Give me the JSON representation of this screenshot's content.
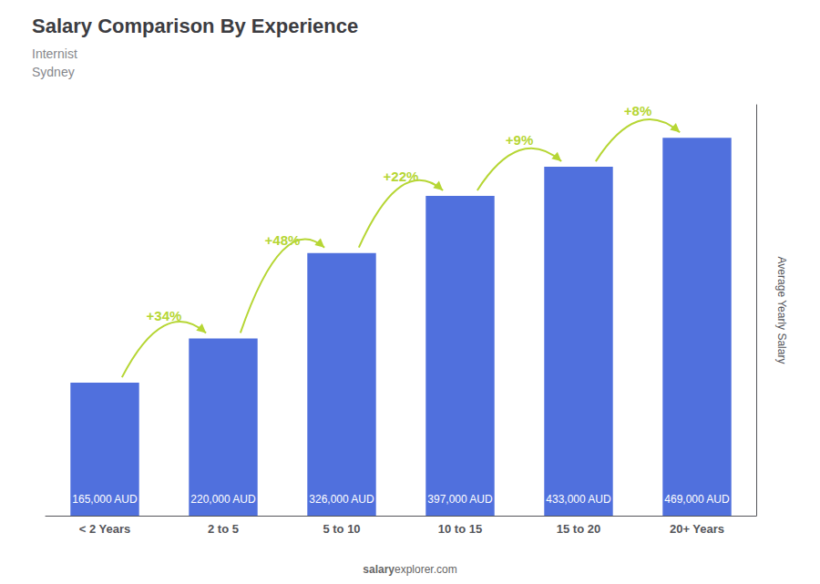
{
  "chart_data": {
    "type": "bar",
    "title": "Salary Comparison By Experience",
    "subtitle": [
      "Internist",
      "Sydney"
    ],
    "categories": [
      "< 2 Years",
      "2 to 5",
      "5 to 10",
      "10 to 15",
      "15 to 20",
      "20+ Years"
    ],
    "values": [
      165000,
      220000,
      326000,
      397000,
      433000,
      469000
    ],
    "value_labels": [
      "165,000 AUD",
      "220,000 AUD",
      "326,000 AUD",
      "397,000 AUD",
      "433,000 AUD",
      "469,000 AUD"
    ],
    "data_labels": true,
    "ylabel": "Average Yearly Salary",
    "annotations": [
      "+34%",
      "+48%",
      "+22%",
      "+9%",
      "+8%"
    ],
    "watermark": [
      "salary",
      "explorer.com"
    ],
    "ylim": [
      0,
      510000
    ],
    "tick_labels": "x",
    "grid": false
  }
}
